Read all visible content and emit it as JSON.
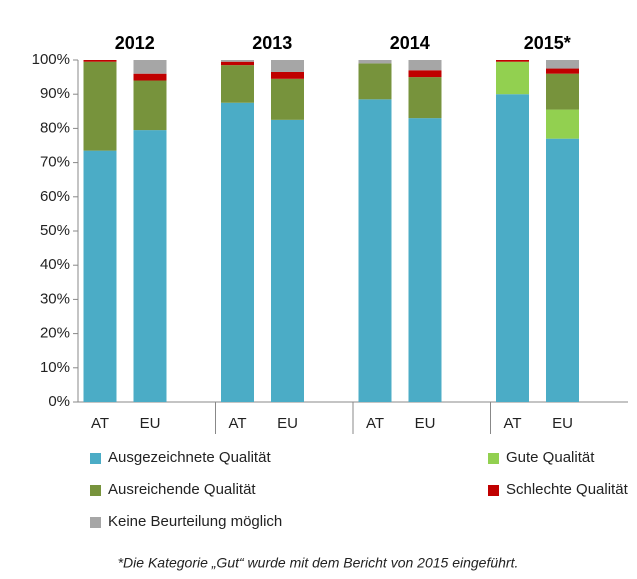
{
  "chart_data": {
    "type": "stacked_bar",
    "categories": [
      "AT",
      "EU",
      "AT",
      "EU",
      "AT",
      "EU",
      "AT",
      "EU"
    ],
    "groups": [
      "2012",
      "2013",
      "2014",
      "2015*"
    ],
    "series": [
      {
        "name": "Ausgezeichnete Qualität",
        "color": "#4bacc6",
        "values": [
          73.5,
          79.5,
          87.5,
          82.5,
          88.5,
          83,
          90,
          77
        ]
      },
      {
        "name": "Gute Qualität",
        "color": "#92d050",
        "values": [
          0,
          0,
          0,
          0,
          0,
          0,
          9.5,
          8.5
        ]
      },
      {
        "name": "Ausreichende Qualität",
        "color": "#77933c",
        "values": [
          26,
          14.5,
          11,
          12,
          10.5,
          12,
          0,
          10.5
        ]
      },
      {
        "name": "Schlechte Qualität",
        "color": "#c00000",
        "values": [
          0.5,
          2,
          1,
          2,
          0,
          2,
          0.5,
          1.5
        ]
      },
      {
        "name": "Keine Beurteilung möglich",
        "color": "#a6a6a6",
        "values": [
          0,
          4,
          0.5,
          3.5,
          1,
          3,
          0,
          2.5
        ]
      }
    ],
    "ylim": [
      0,
      100
    ],
    "yticks": [
      {
        "value": 0,
        "label": "0%"
      },
      {
        "value": 10,
        "label": "10%"
      },
      {
        "value": 20,
        "label": "20%"
      },
      {
        "value": 30,
        "label": "30%"
      },
      {
        "value": 40,
        "label": "40%"
      },
      {
        "value": 50,
        "label": "50%"
      },
      {
        "value": 60,
        "label": "60%"
      },
      {
        "value": 70,
        "label": "70%"
      },
      {
        "value": 80,
        "label": "80%"
      },
      {
        "value": 90,
        "label": "90%"
      },
      {
        "value": 100,
        "label": "100%"
      }
    ],
    "note": "*Die Kategorie „Gut“ wurde  mit dem Bericht von 2015 eingeführt."
  }
}
